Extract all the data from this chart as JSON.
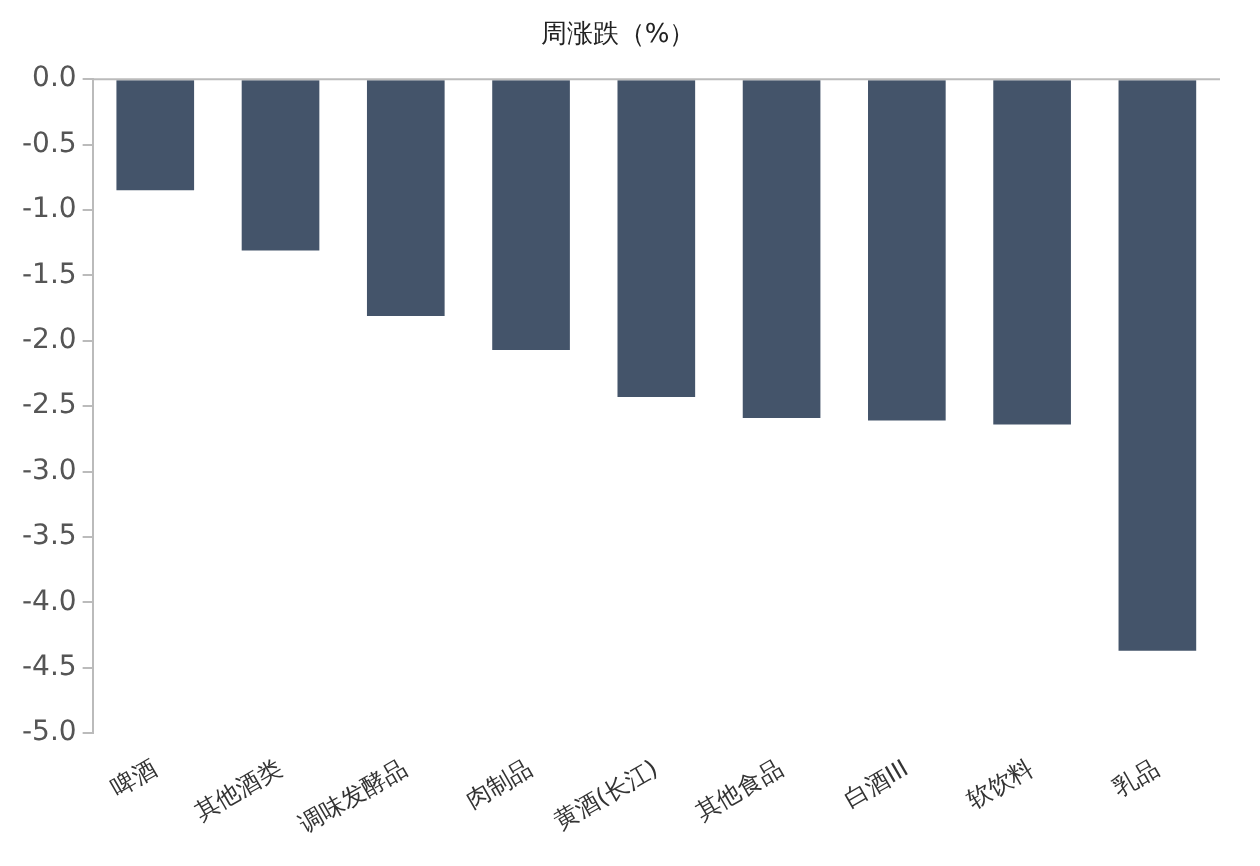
{
  "chart_data": {
    "type": "bar",
    "title": "周涨跌（%）",
    "categories": [
      "啤酒",
      "其他酒类",
      "调味发酵品",
      "肉制品",
      "黄酒(长江)",
      "其他食品",
      "白酒III",
      "软饮料",
      "乳品"
    ],
    "values": [
      -0.85,
      -1.31,
      -1.81,
      -2.07,
      -2.43,
      -2.59,
      -2.61,
      -2.64,
      -4.37
    ],
    "color": "#44546a",
    "ylim": [
      -5,
      0
    ],
    "yticks": [
      {
        "value": -5,
        "label": "-5.0"
      },
      {
        "value": -4.5,
        "label": "-4.5"
      },
      {
        "value": -4,
        "label": "-4.0"
      },
      {
        "value": -3.5,
        "label": "-3.5"
      },
      {
        "value": -3,
        "label": "-3.0"
      },
      {
        "value": -2.5,
        "label": "-2.5"
      },
      {
        "value": -2,
        "label": "-2.0"
      },
      {
        "value": -1.5,
        "label": "-1.5"
      },
      {
        "value": -1,
        "label": "-1.0"
      },
      {
        "value": -0.5,
        "label": "-0.5"
      },
      {
        "value": 0,
        "label": "0.0"
      }
    ],
    "grid": false,
    "legend": false
  }
}
